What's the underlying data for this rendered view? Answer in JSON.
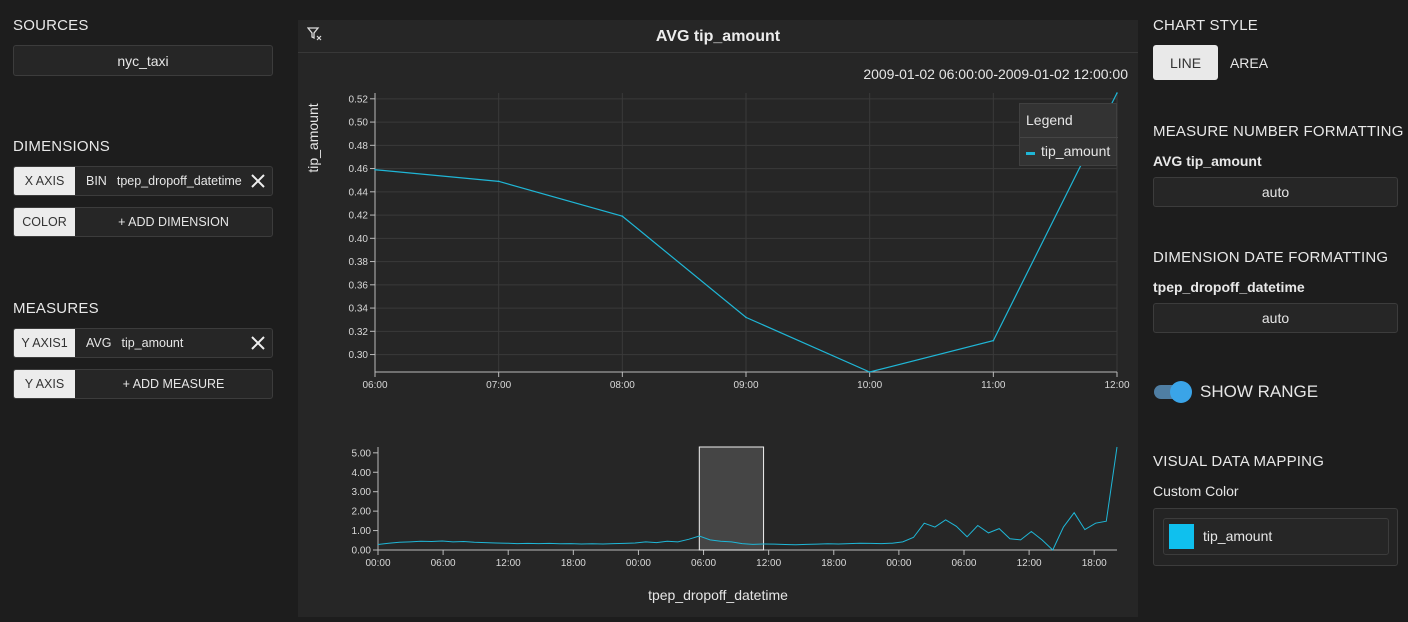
{
  "sidebar": {
    "sources_title": "SOURCES",
    "source": "nyc_taxi",
    "dimensions_title": "DIMENSIONS",
    "x_axis": {
      "tag": "X AXIS",
      "agg": "BIN",
      "field": "tpep_dropoff_datetime"
    },
    "color": {
      "tag": "COLOR",
      "add": "+ ADD DIMENSION"
    },
    "measures_title": "MEASURES",
    "y_axis1": {
      "tag": "Y AXIS1",
      "agg": "AVG",
      "field": "tip_amount"
    },
    "y_axis": {
      "tag": "Y AXIS",
      "add": "+ ADD MEASURE"
    }
  },
  "chart": {
    "title": "AVG tip_amount",
    "date_range": "2009-01-02 06:00:00-2009-01-02 12:00:00",
    "ylabel": "tip_amount",
    "xlabel": "tpep_dropoff_datetime",
    "legend_title": "Legend",
    "line_color": "#1fb6d6"
  },
  "chart_data": [
    {
      "type": "line",
      "ylabel": "tip_amount",
      "x": [
        "06:00",
        "07:00",
        "08:00",
        "09:00",
        "10:00",
        "11:00",
        "12:00"
      ],
      "series": [
        {
          "name": "tip_amount",
          "values": [
            0.459,
            0.449,
            0.419,
            0.332,
            0.285,
            0.312,
            0.525
          ]
        }
      ],
      "ylim": [
        0.285,
        0.525
      ],
      "y_ticks": [
        "0.30",
        "0.32",
        "0.34",
        "0.36",
        "0.38",
        "0.40",
        "0.42",
        "0.44",
        "0.46",
        "0.48",
        "0.50",
        "0.52"
      ],
      "grid": true,
      "legend": "top-right"
    },
    {
      "type": "line",
      "xlabel": "tpep_dropoff_datetime",
      "x_ticks": [
        "00:00",
        "06:00",
        "12:00",
        "18:00",
        "00:00",
        "06:00",
        "12:00",
        "18:00",
        "00:00",
        "06:00",
        "12:00",
        "18:00"
      ],
      "y_ticks": [
        "0.00",
        "1.00",
        "2.00",
        "3.00",
        "4.00",
        "5.00"
      ],
      "ylim": [
        0,
        5.3
      ],
      "selected_range": [
        30,
        36
      ],
      "series": [
        {
          "name": "tip_amount",
          "values": [
            0.28,
            0.35,
            0.4,
            0.42,
            0.45,
            0.44,
            0.46,
            0.42,
            0.44,
            0.4,
            0.38,
            0.36,
            0.35,
            0.33,
            0.34,
            0.33,
            0.34,
            0.32,
            0.33,
            0.31,
            0.32,
            0.31,
            0.33,
            0.34,
            0.36,
            0.42,
            0.38,
            0.45,
            0.42,
            0.55,
            0.72,
            0.52,
            0.45,
            0.42,
            0.33,
            0.29,
            0.31,
            0.3,
            0.28,
            0.27,
            0.29,
            0.3,
            0.32,
            0.31,
            0.33,
            0.35,
            0.34,
            0.33,
            0.35,
            0.42,
            0.65,
            1.38,
            1.18,
            1.55,
            1.22,
            0.68,
            1.26,
            0.88,
            1.1,
            0.58,
            0.52,
            0.95,
            0.52,
            0.0,
            1.18,
            1.92,
            1.05,
            1.38,
            1.48,
            5.3
          ]
        }
      ]
    }
  ],
  "right_panel": {
    "chart_style_title": "CHART STYLE",
    "line_btn": "LINE",
    "area_btn": "AREA",
    "measure_fmt_title": "MEASURE NUMBER FORMATTING",
    "measure_fmt_field": "AVG tip_amount",
    "measure_fmt_value": "auto",
    "date_fmt_title": "DIMENSION DATE FORMATTING",
    "date_fmt_field": "tpep_dropoff_datetime",
    "date_fmt_value": "auto",
    "show_range_label": "SHOW RANGE",
    "show_range": true,
    "mapping_title": "VISUAL DATA MAPPING",
    "custom_color_label": "Custom Color",
    "mapping_field": "tip_amount",
    "mapping_color": "#0fc0ee"
  }
}
